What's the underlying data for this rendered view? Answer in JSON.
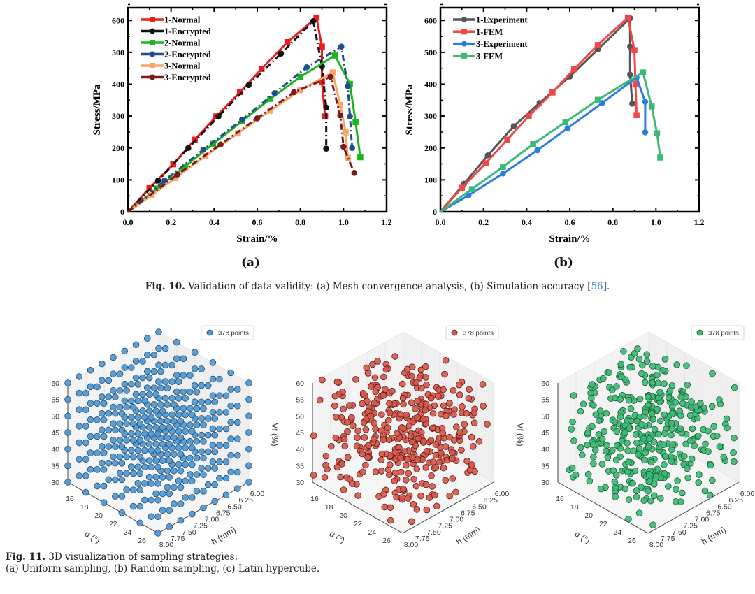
{
  "figure10": {
    "panel_labels": [
      "(a)",
      "(b)"
    ],
    "caption": {
      "label": "Fig. 10.",
      "text": " Validation of data validity: (a) Mesh convergence analysis, (b) Simulation accuracy [",
      "ref": "56",
      "end": "]."
    }
  },
  "figure11": {
    "caption": {
      "label": "Fig. 11.",
      "line1": " 3D visualization of sampling strategies:",
      "line2": "(a) Uniform sampling, (b) Random sampling, (c) Latin hypercube."
    }
  },
  "chart_data": [
    {
      "type": "line",
      "panel": "(a)",
      "title": "",
      "xlabel": "Strain/%",
      "ylabel": "Stress/MPa",
      "xlim": [
        0,
        1.2
      ],
      "ylim": [
        0,
        640
      ],
      "xticks": [
        "0.0",
        "0.2",
        "0.4",
        "0.6",
        "0.8",
        "1.0",
        "1.2"
      ],
      "yticks": [
        "0",
        "100",
        "200",
        "300",
        "400",
        "500",
        "600"
      ],
      "legend": "top-left",
      "series": [
        {
          "name": "1-Normal",
          "color": "#ee1c1c",
          "marker": "square",
          "dash": "solid",
          "x": [
            0,
            0.1,
            0.21,
            0.31,
            0.41,
            0.52,
            0.62,
            0.74,
            0.875,
            0.9,
            0.9,
            0.915
          ],
          "y": [
            0,
            74,
            149,
            226,
            299,
            375,
            448,
            532,
            609,
            518,
            408,
            299
          ]
        },
        {
          "name": "1-Encrypted",
          "color": "#111111",
          "marker": "circle",
          "dash": "dashdot",
          "x": [
            0,
            0.14,
            0.28,
            0.42,
            0.56,
            0.71,
            0.86,
            0.9,
            0.92,
            0.92
          ],
          "y": [
            0,
            98,
            200,
            299,
            397,
            496,
            598,
            456,
            327,
            198
          ]
        },
        {
          "name": "2-Normal",
          "color": "#1fb41f",
          "marker": "square",
          "dash": "solid",
          "x": [
            0,
            0.135,
            0.265,
            0.395,
            0.53,
            0.66,
            0.8,
            0.96,
            1.03,
            1.056,
            1.078
          ],
          "y": [
            0,
            73,
            142,
            213,
            284,
            354,
            423,
            490,
            401,
            281,
            171
          ]
        },
        {
          "name": "2-Encrypted",
          "color": "#1f4e8c",
          "marker": "circle",
          "dash": "dashdot",
          "x": [
            0,
            0.17,
            0.35,
            0.53,
            0.68,
            0.83,
            0.99,
            1.02,
            1.03,
            1.04
          ],
          "y": [
            0,
            98,
            195,
            289,
            372,
            453,
            518,
            394,
            299,
            200
          ]
        },
        {
          "name": "3-Normal",
          "color": "#f6a66a",
          "marker": "square",
          "dash": "solid",
          "x": [
            0,
            0.11,
            0.22,
            0.36,
            0.51,
            0.66,
            0.8,
            0.95,
            0.985,
            1.01,
            1.02
          ],
          "y": [
            0,
            52,
            106,
            175,
            246,
            317,
            381,
            437,
            335,
            249,
            169
          ]
        },
        {
          "name": "3-Encrypted",
          "color": "#7a1a1a",
          "marker": "circle",
          "dash": "dashdot",
          "x": [
            0,
            0.23,
            0.43,
            0.6,
            0.77,
            0.94,
            0.985,
            1.0,
            1.05
          ],
          "y": [
            0,
            117,
            211,
            293,
            375,
            423,
            302,
            204,
            122
          ]
        }
      ]
    },
    {
      "type": "line",
      "panel": "(b)",
      "title": "",
      "xlabel": "Strain/%",
      "ylabel": "Stress/MPa",
      "xlim": [
        0,
        1.2
      ],
      "ylim": [
        0,
        640
      ],
      "xticks": [
        "0.0",
        "0.2",
        "0.4",
        "0.6",
        "0.8",
        "1.0",
        "1.2"
      ],
      "yticks": [
        "0",
        "100",
        "200",
        "300",
        "400",
        "500",
        "600"
      ],
      "legend": "top-left",
      "series": [
        {
          "name": "1-Experiment",
          "color": "#555555",
          "marker": "circle",
          "dash": "solid",
          "x": [
            0,
            0.11,
            0.22,
            0.34,
            0.46,
            0.6,
            0.73,
            0.88,
            0.88,
            0.88,
            0.89
          ],
          "y": [
            0,
            88,
            177,
            268,
            341,
            424,
            509,
            607,
            518,
            430,
            339
          ]
        },
        {
          "name": "1-FEM",
          "color": "#f04848",
          "marker": "square",
          "dash": "solid",
          "x": [
            0,
            0.1,
            0.21,
            0.31,
            0.41,
            0.52,
            0.62,
            0.73,
            0.87,
            0.9,
            0.905,
            0.91
          ],
          "y": [
            0,
            75,
            152,
            226,
            300,
            374,
            447,
            523,
            609,
            507,
            400,
            303
          ]
        },
        {
          "name": "3-Experiment",
          "color": "#2a7de0",
          "marker": "circle",
          "dash": "solid",
          "x": [
            0,
            0.13,
            0.29,
            0.45,
            0.59,
            0.75,
            0.91,
            0.95,
            0.95
          ],
          "y": [
            0,
            51,
            120,
            193,
            262,
            341,
            421,
            345,
            249
          ]
        },
        {
          "name": "3-FEM",
          "color": "#3cb878",
          "marker": "square",
          "dash": "solid",
          "x": [
            0,
            0.146,
            0.29,
            0.43,
            0.58,
            0.73,
            0.94,
            0.98,
            1.005,
            1.02
          ],
          "y": [
            0,
            71,
            141,
            212,
            281,
            351,
            437,
            330,
            246,
            170
          ]
        }
      ]
    },
    {
      "type": "scatter3d",
      "panel": "(a)",
      "sampling": "uniform",
      "legend_label": "378 points",
      "n_points": 378,
      "color": "#4f97cf",
      "edge": "#1f4d78",
      "xlabel": "α (°)",
      "xlim": [
        16,
        26
      ],
      "xticks": [
        "16",
        "18",
        "20",
        "22",
        "24",
        "26"
      ],
      "ylabel": "h (mm)",
      "ylim": [
        6,
        8
      ],
      "yticks": [
        "6.00",
        "6.25",
        "6.50",
        "6.75",
        "7.00",
        "7.25",
        "7.50",
        "7.75",
        "8.00"
      ],
      "zlabel": "",
      "zlim": [
        30,
        60
      ],
      "zticks": [
        "30",
        "35",
        "40",
        "45",
        "50",
        "55",
        "60"
      ]
    },
    {
      "type": "scatter3d",
      "panel": "(b)",
      "sampling": "random",
      "legend_label": "378 points",
      "n_points": 378,
      "color": "#d9574a",
      "edge": "#5a1d18",
      "xlabel": "α (°)",
      "xlim": [
        16,
        26
      ],
      "xticks": [
        "16",
        "18",
        "20",
        "22",
        "24",
        "26"
      ],
      "ylabel": "h (mm)",
      "ylim": [
        6,
        8
      ],
      "yticks": [
        "6.00",
        "6.25",
        "6.50",
        "6.75",
        "7.00",
        "7.25",
        "7.50",
        "7.75",
        "8.00"
      ],
      "zlabel": "Vf (%)",
      "zlim": [
        30,
        60
      ],
      "zticks": [
        "30",
        "35",
        "40",
        "45",
        "50",
        "55",
        "60"
      ]
    },
    {
      "type": "scatter3d",
      "panel": "(c)",
      "sampling": "latin-hypercube",
      "legend_label": "378 points",
      "n_points": 378,
      "color": "#3dbb74",
      "edge": "#1b5a35",
      "xlabel": "α (°)",
      "xlim": [
        16,
        26
      ],
      "xticks": [
        "16",
        "18",
        "20",
        "22",
        "24",
        "26"
      ],
      "ylabel": "h (mm)",
      "ylim": [
        6,
        8
      ],
      "yticks": [
        "6.00",
        "6.25",
        "6.50",
        "6.75",
        "7.00",
        "7.25",
        "7.50",
        "7.75",
        "8.00"
      ],
      "zlabel": "Vf (%)",
      "zlim": [
        30,
        60
      ],
      "zticks": [
        "30",
        "35",
        "40",
        "45",
        "50",
        "55",
        "60"
      ]
    }
  ]
}
